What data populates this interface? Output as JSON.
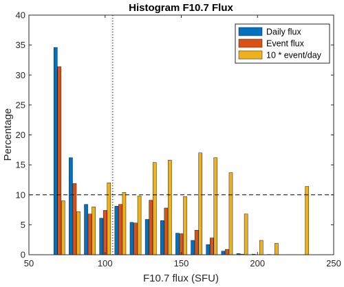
{
  "chart_data": {
    "type": "bar",
    "title": "Histogram F10.7 Flux",
    "xlabel": "F10.7 flux (SFU)",
    "ylabel": "Percentage",
    "xlim": [
      50,
      250
    ],
    "ylim": [
      0,
      40
    ],
    "xticks": [
      "50",
      "100",
      "150",
      "200",
      "250"
    ],
    "yticks": [
      "0",
      "5",
      "10",
      "15",
      "20",
      "25",
      "30",
      "35",
      "40"
    ],
    "grid": false,
    "legend_position": "top-right",
    "bin_centers": [
      70,
      80,
      90,
      100,
      110,
      120,
      130,
      140,
      150,
      160,
      170,
      180,
      190,
      200,
      210,
      220,
      230
    ],
    "series": [
      {
        "name": "Daily flux",
        "color": "#0072BD",
        "values": [
          34.6,
          16.2,
          8.4,
          6.1,
          8.1,
          5.4,
          5.9,
          5.7,
          3.6,
          2.4,
          1.7,
          0.6,
          0.2,
          0.1,
          0.05,
          0.0,
          0.0
        ]
      },
      {
        "name": "Event flux",
        "color": "#D95319",
        "values": [
          31.4,
          11.9,
          6.8,
          7.4,
          8.4,
          5.3,
          9.1,
          7.8,
          3.5,
          4.1,
          2.8,
          0.9,
          0.1,
          0.0,
          0.0,
          0.0,
          0.0
        ]
      },
      {
        "name": "10 * event/day",
        "color": "#EDB120",
        "values": [
          9.0,
          7.2,
          8.0,
          12.0,
          10.4,
          9.8,
          15.4,
          15.8,
          9.7,
          17.0,
          16.2,
          13.7,
          6.8,
          2.4,
          1.9,
          0.0,
          11.4
        ]
      }
    ],
    "reference_lines": [
      {
        "orientation": "horizontal",
        "style": "dashed",
        "value": 10
      },
      {
        "orientation": "vertical",
        "style": "dotted",
        "value": 105
      }
    ]
  }
}
